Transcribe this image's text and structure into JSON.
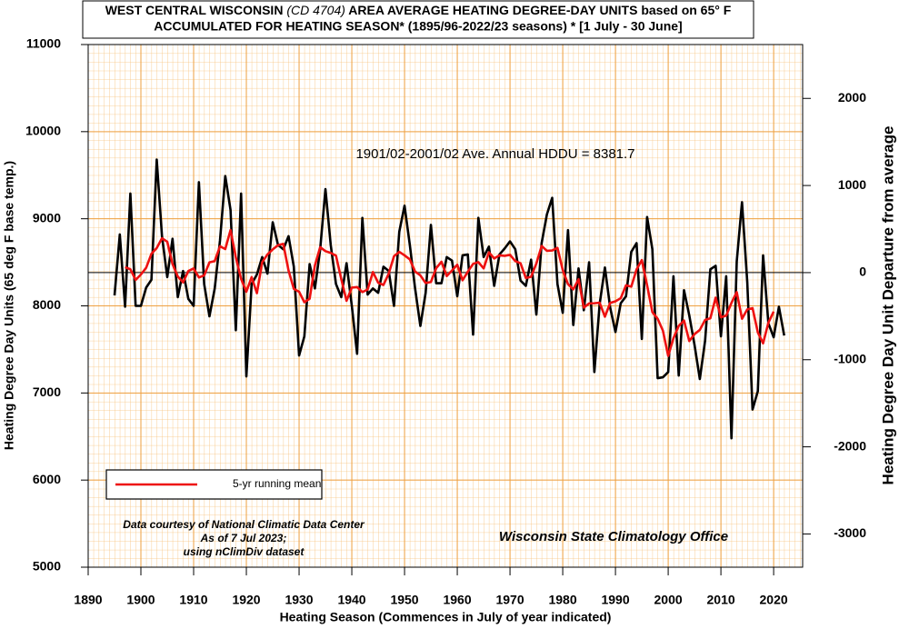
{
  "chart_data": {
    "type": "line",
    "title": [
      "WEST CENTRAL WISCONSIN",
      "(CD 4704)",
      "AREA AVERAGE HEATING DEGREE-DAY UNITS based on 65° F",
      "ACCUMULATED FOR HEATING SEASON*  (1895/96-2022/23 seasons) * [1 July - 30 June]"
    ],
    "x_label": "Heating Season (Commences in July of year indicated)",
    "y_label": "Heating Degree Day Units (65 deg F base temp.)",
    "y2_label": "Heating Degree Day Unit Departure from average",
    "annotation": "1901/02-2001/02 Ave. Annual HDDU = 8381.7",
    "reference_line": 8381.7,
    "credits": [
      "Data courtesy of National Climatic Data Center",
      "As of 7 Jul 2023;",
      "using nClimDiv dataset"
    ],
    "source": "Wisconsin State Climatology Office",
    "legend": "lower left",
    "grid": true,
    "minor_grid": {
      "x": 1,
      "y": 100
    },
    "xlim": [
      1890,
      2025.5
    ],
    "xticks": [
      1890,
      1900,
      1910,
      1920,
      1930,
      1940,
      1950,
      1960,
      1970,
      1980,
      1990,
      2000,
      2010,
      2020
    ],
    "ylim": [
      5000,
      11000
    ],
    "yticks": [
      5000,
      6000,
      7000,
      8000,
      9000,
      10000,
      11000
    ],
    "y2lim": [
      -3381.7,
      2618.3
    ],
    "y2ticks": [
      -3000,
      -2000,
      -1000,
      0,
      1000,
      2000
    ],
    "x": [
      1895,
      1896,
      1897,
      1898,
      1899,
      1900,
      1901,
      1902,
      1903,
      1904,
      1905,
      1906,
      1907,
      1908,
      1909,
      1910,
      1911,
      1912,
      1913,
      1914,
      1915,
      1916,
      1917,
      1918,
      1919,
      1920,
      1921,
      1922,
      1923,
      1924,
      1925,
      1926,
      1927,
      1928,
      1929,
      1930,
      1931,
      1932,
      1933,
      1934,
      1935,
      1936,
      1937,
      1938,
      1939,
      1940,
      1941,
      1942,
      1943,
      1944,
      1945,
      1946,
      1947,
      1948,
      1949,
      1950,
      1951,
      1952,
      1953,
      1954,
      1955,
      1956,
      1957,
      1958,
      1959,
      1960,
      1961,
      1962,
      1963,
      1964,
      1965,
      1966,
      1967,
      1968,
      1969,
      1970,
      1971,
      1972,
      1973,
      1974,
      1975,
      1976,
      1977,
      1978,
      1979,
      1980,
      1981,
      1982,
      1983,
      1984,
      1985,
      1986,
      1987,
      1988,
      1989,
      1990,
      1991,
      1992,
      1993,
      1994,
      1995,
      1996,
      1997,
      1998,
      1999,
      2000,
      2001,
      2002,
      2003,
      2004,
      2005,
      2006,
      2007,
      2008,
      2009,
      2010,
      2011,
      2012,
      2013,
      2014,
      2015,
      2016,
      2017,
      2018,
      2019,
      2020,
      2021,
      2022
    ],
    "series": [
      {
        "color": "#000000",
        "values": [
          8120,
          8820,
          7990,
          9290,
          8000,
          8000,
          8210,
          8300,
          9680,
          8800,
          8330,
          8770,
          8100,
          8400,
          8080,
          8000,
          9420,
          8250,
          7880,
          8200,
          8750,
          9490,
          9100,
          7720,
          9290,
          7190,
          8250,
          8360,
          8560,
          8370,
          8960,
          8700,
          8650,
          8800,
          8450,
          7430,
          7650,
          8480,
          8200,
          8650,
          9340,
          8700,
          8250,
          8100,
          8490,
          8000,
          7450,
          9010,
          8130,
          8200,
          8150,
          8450,
          8400,
          8000,
          8850,
          9150,
          8700,
          8200,
          7770,
          8150,
          8930,
          8260,
          8260,
          8560,
          8520,
          8110,
          8580,
          8590,
          7670,
          9010,
          8560,
          8680,
          8230,
          8590,
          8660,
          8740,
          8650,
          8290,
          8230,
          8530,
          7900,
          8720,
          9050,
          9240,
          8250,
          7920,
          8870,
          7780,
          8430,
          7950,
          8500,
          7240,
          8020,
          8440,
          7980,
          7700,
          8030,
          8110,
          8620,
          8720,
          7620,
          9020,
          8650,
          7170,
          7180,
          7240,
          8340,
          7200,
          8180,
          7890,
          7550,
          7160,
          7600,
          8420,
          8460,
          7650,
          8340,
          6480,
          8510,
          9190,
          8270,
          6810,
          7020,
          8580,
          7800,
          7640,
          7990,
          7660
        ]
      },
      {
        "name": "5-yr running mean",
        "color": "#ee1111",
        "values": [
          null,
          null,
          8444,
          8420,
          8298,
          8360,
          8438,
          8598,
          8664,
          8776,
          8736,
          8480,
          8336,
          8270,
          8400,
          8430,
          8326,
          8350,
          8500,
          8514,
          8684,
          8652,
          8870,
          8558,
          8310,
          8162,
          8330,
          8146,
          8500,
          8590,
          8648,
          8696,
          8712,
          8406,
          8196,
          8162,
          8042,
          8082,
          8464,
          8674,
          8628,
          8608,
          8576,
          8308,
          8058,
          8210,
          8216,
          8158,
          8188,
          8388,
          8266,
          8240,
          8370,
          8570,
          8620,
          8580,
          8534,
          8394,
          8350,
          8262,
          8274,
          8432,
          8506,
          8342,
          8406,
          8472,
          8294,
          8392,
          8482,
          8502,
          8430,
          8614,
          8544,
          8580,
          8574,
          8586,
          8514,
          8488,
          8320,
          8334,
          8486,
          8688,
          8632,
          8636,
          8666,
          8412,
          8250,
          8190,
          8306,
          7980,
          8028,
          8030,
          8036,
          7876,
          8034,
          8052,
          8088,
          8236,
          8220,
          8418,
          8526,
          8236,
          7928,
          7852,
          7716,
          7426,
          7628,
          7770,
          7832,
          7596,
          7676,
          7724,
          7838,
          7858,
          8094,
          7870,
          7888,
          8034,
          8158,
          7852,
          7960,
          7974,
          7696,
          7570,
          7806,
          7934,
          null,
          null
        ]
      }
    ]
  }
}
